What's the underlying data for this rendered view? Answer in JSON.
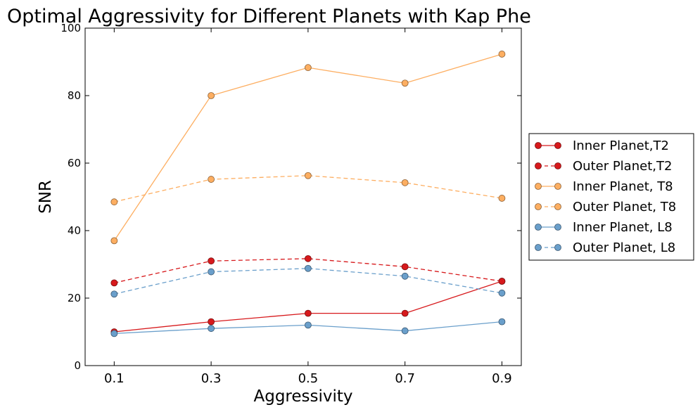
{
  "chart_data": {
    "type": "line",
    "title": "Optimal Aggressivity for Different Planets with Kap Phe",
    "xlabel": "Aggressivity",
    "ylabel": "SNR",
    "x": [
      0.1,
      0.3,
      0.5,
      0.7,
      0.9
    ],
    "x_tick_labels": [
      "0.1",
      "0.3",
      "0.5",
      "0.7",
      "0.9"
    ],
    "xlim": [
      0.04,
      0.94
    ],
    "ylim": [
      0,
      100
    ],
    "y_ticks": [
      0,
      20,
      40,
      60,
      80,
      100
    ],
    "y_tick_labels": [
      "0",
      "20",
      "40",
      "60",
      "80",
      "100"
    ],
    "legend_position": "right",
    "series": [
      {
        "name": "Inner Planet,T2",
        "color": "#d7191c",
        "linestyle": "solid",
        "values": [
          10,
          13,
          15.5,
          15.5,
          25
        ]
      },
      {
        "name": "Outer Planet,T2",
        "color": "#d7191c",
        "linestyle": "dashed",
        "values": [
          24.5,
          31,
          31.7,
          29.3,
          25
        ]
      },
      {
        "name": "Inner Planet, T8",
        "color": "#fdae61",
        "linestyle": "solid",
        "values": [
          37,
          80,
          88.3,
          83.7,
          92.3
        ]
      },
      {
        "name": "Outer Planet, T8",
        "color": "#fdae61",
        "linestyle": "dashed",
        "values": [
          48.5,
          55.2,
          56.3,
          54.2,
          49.6
        ]
      },
      {
        "name": "Inner Planet, L8",
        "color": "#6a9fcb",
        "linestyle": "solid",
        "values": [
          9.5,
          11,
          12,
          10.3,
          13
        ]
      },
      {
        "name": "Outer Planet, L8",
        "color": "#6a9fcb",
        "linestyle": "dashed",
        "values": [
          21.2,
          27.8,
          28.8,
          26.5,
          21.5
        ]
      }
    ]
  }
}
